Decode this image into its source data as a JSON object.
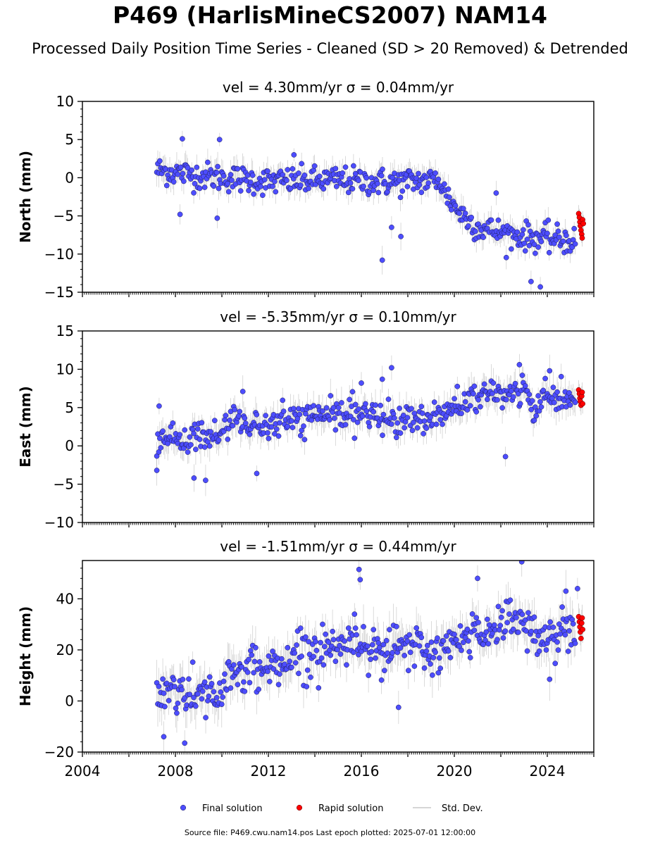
{
  "title": "P469 (HarlisMineCS2007) NAM14",
  "subtitle": "Processed Daily Position Time Series - Cleaned (SD > 20 Removed) & Detrended",
  "source_text": "Source file: P469.cwu.nam14.pos  Last epoch plotted: 2025-07-01 12:00:00",
  "legend": [
    {
      "label": "Final solution",
      "color": "#4d4dff"
    },
    {
      "label": "Rapid solution",
      "color": "#ff0000"
    },
    {
      "label": "Std. Dev.",
      "color": "#c8c8c8"
    }
  ],
  "chart_data": [
    {
      "type": "scatter",
      "panel_title": "vel = 4.30mm/yr   σ = 0.04mm/yr",
      "ylabel": "North (mm)",
      "xlim": [
        2004,
        2026
      ],
      "ylim": [
        -15,
        10
      ],
      "yticks": [
        -15,
        -10,
        -5,
        0,
        5,
        10
      ],
      "xticks": [
        2004,
        2008,
        2012,
        2016,
        2020,
        2024
      ],
      "show_xticklabels": false,
      "final_trend": [
        [
          2007.2,
          1.0
        ],
        [
          2009.0,
          0.3
        ],
        [
          2012.0,
          -0.5
        ],
        [
          2015.0,
          -0.3
        ],
        [
          2017.0,
          -0.6
        ],
        [
          2019.4,
          -0.3
        ],
        [
          2019.5,
          -1.5
        ],
        [
          2020.2,
          -4.5
        ],
        [
          2021.0,
          -6.5
        ],
        [
          2022.5,
          -7.5
        ],
        [
          2024.0,
          -8.0
        ],
        [
          2025.2,
          -8.3
        ]
      ],
      "final_outliers": [
        [
          2008.3,
          5.1
        ],
        [
          2009.9,
          5.0
        ],
        [
          2016.9,
          -10.8
        ],
        [
          2017.7,
          -7.7
        ],
        [
          2021.8,
          -2.0
        ],
        [
          2023.3,
          -13.6
        ],
        [
          2023.7,
          -14.3
        ],
        [
          2009.8,
          -5.3
        ],
        [
          2008.2,
          -4.8
        ],
        [
          2017.3,
          -6.5
        ],
        [
          2013.1,
          3.0
        ]
      ],
      "rapid": [
        [
          2025.35,
          -4.7
        ],
        [
          2025.38,
          -5.2
        ],
        [
          2025.4,
          -5.8
        ],
        [
          2025.42,
          -6.3
        ],
        [
          2025.45,
          -6.9
        ],
        [
          2025.48,
          -7.4
        ],
        [
          2025.5,
          -7.9
        ],
        [
          2025.52,
          -5.5
        ],
        [
          2025.55,
          -6.0
        ]
      ]
    },
    {
      "type": "scatter",
      "panel_title": "vel = -5.35mm/yr   σ = 0.10mm/yr",
      "ylabel": "East (mm)",
      "xlim": [
        2004,
        2026
      ],
      "ylim": [
        -10,
        15
      ],
      "yticks": [
        -10,
        -5,
        0,
        5,
        10,
        15
      ],
      "xticks": [
        2004,
        2008,
        2012,
        2016,
        2020,
        2024
      ],
      "show_xticklabels": false,
      "final_trend": [
        [
          2007.2,
          0.5
        ],
        [
          2008.5,
          1.0
        ],
        [
          2010.0,
          1.5
        ],
        [
          2010.5,
          3.5
        ],
        [
          2012.0,
          2.5
        ],
        [
          2014.0,
          4.0
        ],
        [
          2016.0,
          4.0
        ],
        [
          2018.0,
          3.5
        ],
        [
          2019.5,
          4.0
        ],
        [
          2020.5,
          6.0
        ],
        [
          2022.5,
          7.0
        ],
        [
          2023.0,
          7.5
        ],
        [
          2023.4,
          4.0
        ],
        [
          2024.0,
          6.5
        ],
        [
          2025.2,
          6.0
        ]
      ],
      "final_outliers": [
        [
          2007.3,
          5.2
        ],
        [
          2007.2,
          -3.2
        ],
        [
          2009.3,
          -4.5
        ],
        [
          2008.8,
          -4.2
        ],
        [
          2016.9,
          8.7
        ],
        [
          2017.3,
          10.2
        ],
        [
          2022.2,
          -1.4
        ],
        [
          2024.1,
          9.8
        ],
        [
          2010.9,
          7.1
        ],
        [
          2011.5,
          -3.6
        ],
        [
          2016.0,
          8.2
        ],
        [
          2022.8,
          10.6
        ]
      ],
      "rapid": [
        [
          2025.35,
          7.3
        ],
        [
          2025.38,
          6.8
        ],
        [
          2025.4,
          6.2
        ],
        [
          2025.42,
          5.8
        ],
        [
          2025.45,
          5.3
        ],
        [
          2025.48,
          6.5
        ],
        [
          2025.5,
          7.0
        ],
        [
          2025.52,
          5.5
        ]
      ]
    },
    {
      "type": "scatter",
      "panel_title": "vel = -1.51mm/yr   σ = 0.44mm/yr",
      "ylabel": "Height (mm)",
      "xlim": [
        2004,
        2026
      ],
      "ylim": [
        -20,
        55
      ],
      "yticks": [
        -20,
        0,
        20,
        40
      ],
      "xticks": [
        2004,
        2008,
        2012,
        2016,
        2020,
        2024
      ],
      "show_xticklabels": true,
      "final_trend": [
        [
          2007.2,
          2.0
        ],
        [
          2008.0,
          5.0
        ],
        [
          2009.0,
          2.0
        ],
        [
          2010.0,
          5.0
        ],
        [
          2011.0,
          12.0
        ],
        [
          2012.0,
          13.0
        ],
        [
          2013.0,
          17.0
        ],
        [
          2014.0,
          20.0
        ],
        [
          2015.0,
          22.0
        ],
        [
          2016.0,
          24.0
        ],
        [
          2017.0,
          20.0
        ],
        [
          2018.0,
          21.0
        ],
        [
          2019.0,
          18.0
        ],
        [
          2020.0,
          22.0
        ],
        [
          2021.0,
          27.0
        ],
        [
          2022.0,
          30.0
        ],
        [
          2022.8,
          34.0
        ],
        [
          2023.5,
          25.0
        ],
        [
          2024.0,
          24.0
        ],
        [
          2025.2,
          30.0
        ]
      ],
      "final_outliers": [
        [
          2007.5,
          -14.0
        ],
        [
          2008.4,
          -16.5
        ],
        [
          2015.9,
          51.5
        ],
        [
          2015.95,
          47.5
        ],
        [
          2022.9,
          54.5
        ],
        [
          2021.0,
          48.0
        ],
        [
          2024.8,
          43.0
        ],
        [
          2025.3,
          44.0
        ],
        [
          2024.1,
          8.5
        ],
        [
          2017.6,
          -2.5
        ]
      ],
      "rapid": [
        [
          2025.35,
          33.0
        ],
        [
          2025.38,
          31.0
        ],
        [
          2025.4,
          29.0
        ],
        [
          2025.42,
          27.0
        ],
        [
          2025.45,
          24.5
        ],
        [
          2025.48,
          30.5
        ],
        [
          2025.5,
          32.5
        ],
        [
          2025.52,
          28.0
        ]
      ]
    }
  ]
}
